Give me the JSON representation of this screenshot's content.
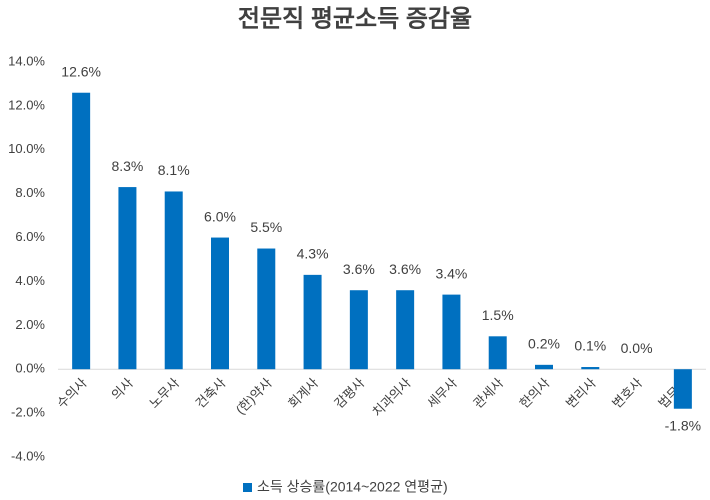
{
  "chart_data": {
    "type": "bar",
    "title": "전문직 평균소득 증감율",
    "categories": [
      "수의사",
      "의사",
      "노무사",
      "건축사",
      "(한)약사",
      "회계사",
      "감평사",
      "치과의사",
      "세무사",
      "관세사",
      "한의사",
      "변리사",
      "변호사",
      "법무사"
    ],
    "series": [
      {
        "name": "소득 상승률(2014~2022 연평균)",
        "color": "#0070c0",
        "values": [
          12.6,
          8.3,
          8.1,
          6.0,
          5.5,
          4.3,
          3.6,
          3.6,
          3.4,
          1.5,
          0.2,
          0.1,
          0.0,
          -1.8
        ],
        "value_labels": [
          "12.6%",
          "8.3%",
          "8.1%",
          "6.0%",
          "5.5%",
          "4.3%",
          "3.6%",
          "3.6%",
          "3.4%",
          "1.5%",
          "0.2%",
          "0.1%",
          "0.0%",
          "-1.8%"
        ]
      }
    ],
    "ylim": [
      -4,
      14
    ],
    "yticks": [
      {
        "value": -4,
        "label": "-4.0%"
      },
      {
        "value": -2,
        "label": "-2.0%"
      },
      {
        "value": 0,
        "label": "0.0%"
      },
      {
        "value": 2,
        "label": "2.0%"
      },
      {
        "value": 4,
        "label": "4.0%"
      },
      {
        "value": 6,
        "label": "6.0%"
      },
      {
        "value": 8,
        "label": "8.0%"
      },
      {
        "value": 10,
        "label": "10.0%"
      },
      {
        "value": 12,
        "label": "12.0%"
      },
      {
        "value": 14,
        "label": "14.0%"
      }
    ],
    "grid": false,
    "legend": "bottom"
  }
}
